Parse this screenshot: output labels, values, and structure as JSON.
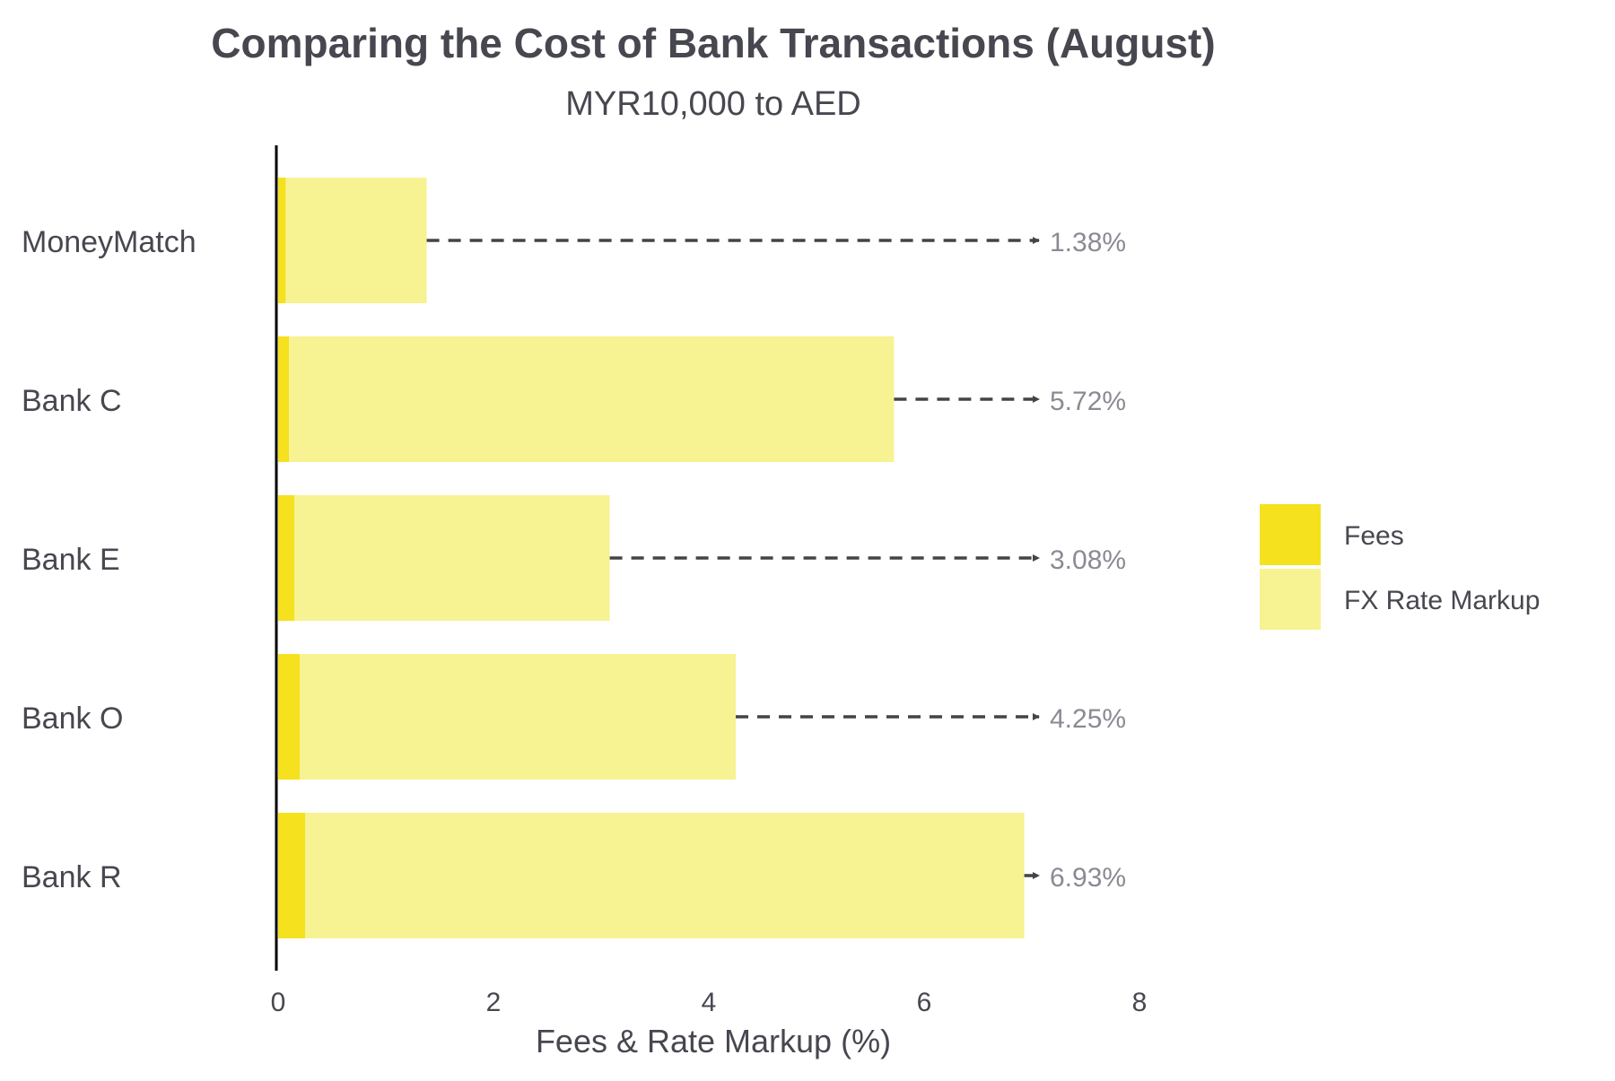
{
  "chart_data": {
    "type": "bar",
    "orientation": "horizontal",
    "stacked": true,
    "title": "Comparing the Cost of Bank Transactions (August)",
    "subtitle": "MYR10,000 to AED",
    "xlabel": "Fees & Rate Markup (%)",
    "ylabel": "",
    "xlim": [
      0,
      8
    ],
    "xticks": [
      0,
      2,
      4,
      6,
      8
    ],
    "grid": false,
    "legend_position": "right",
    "categories": [
      "MoneyMatch",
      "Bank C",
      "Bank E",
      "Bank O",
      "Bank R"
    ],
    "series": [
      {
        "name": "Fees",
        "color": "#F5E11E",
        "values": [
          0.07,
          0.1,
          0.15,
          0.2,
          0.25
        ]
      },
      {
        "name": "FX Rate Markup",
        "color": "#F7F292",
        "values": [
          1.31,
          5.62,
          2.93,
          4.05,
          6.68
        ]
      }
    ],
    "totals": [
      1.38,
      5.72,
      3.08,
      4.25,
      6.93
    ],
    "total_labels": [
      "1.38%",
      "5.72%",
      "3.08%",
      "4.25%",
      "6.93%"
    ],
    "annotation_arrow_end": 7.1
  }
}
